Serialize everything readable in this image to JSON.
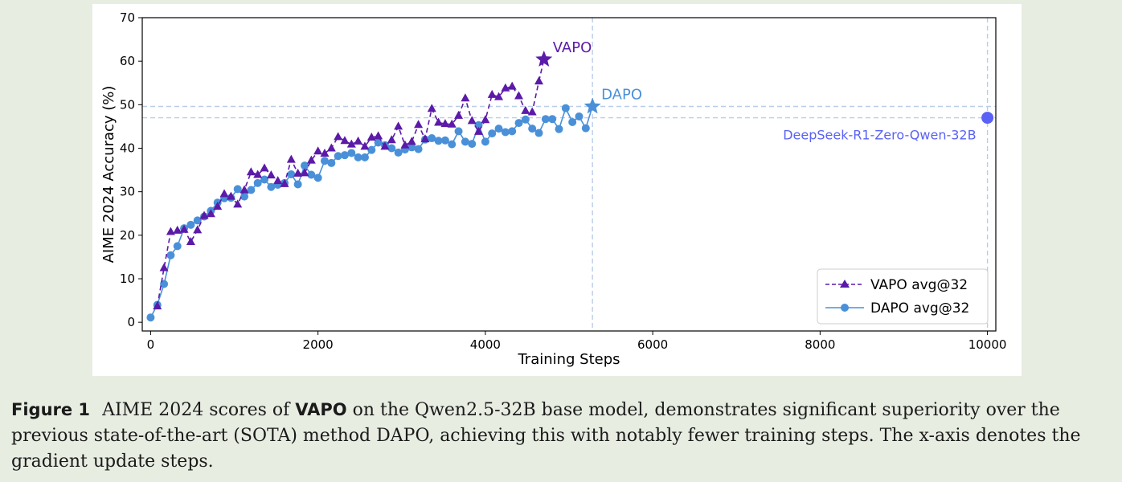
{
  "chart_data": {
    "type": "line",
    "xlabel": "Training Steps",
    "ylabel": "AIME 2024 Accuracy (%)",
    "xlim": [
      -100,
      10100
    ],
    "ylim": [
      -2,
      70
    ],
    "xticks": [
      0,
      2000,
      4000,
      6000,
      8000,
      10000
    ],
    "yticks": [
      0,
      10,
      20,
      30,
      40,
      50,
      60,
      70
    ],
    "legend_position": "lower-right",
    "series": [
      {
        "name": "VAPO avg@32",
        "color": "#5b1aa8",
        "linestyle": "dashed",
        "marker": "triangle",
        "x": [
          80,
          160,
          240,
          320,
          400,
          480,
          560,
          640,
          720,
          800,
          880,
          960,
          1040,
          1120,
          1200,
          1280,
          1360,
          1440,
          1520,
          1600,
          1680,
          1760,
          1840,
          1920,
          2000,
          2080,
          2160,
          2240,
          2320,
          2400,
          2480,
          2560,
          2640,
          2720,
          2800,
          2880,
          2960,
          3040,
          3120,
          3200,
          3280,
          3360,
          3440,
          3520,
          3600,
          3680,
          3760,
          3840,
          3920,
          4000,
          4080,
          4160,
          4240,
          4320,
          4400,
          4480,
          4560,
          4640
        ],
        "y": [
          3.7,
          12.5,
          20.8,
          21.1,
          21.3,
          18.5,
          21.2,
          24.5,
          24.9,
          26.6,
          29.5,
          28.9,
          27.1,
          30.4,
          34.5,
          33.9,
          35.4,
          33.8,
          32.5,
          31.8,
          37.4,
          34.2,
          34.3,
          37.2,
          39.3,
          38.8,
          40.0,
          42.6,
          41.7,
          40.9,
          41.6,
          40.4,
          42.5,
          42.8,
          40.4,
          41.9,
          45.0,
          40.7,
          41.5,
          45.4,
          42.1,
          49.1,
          45.9,
          45.6,
          45.5,
          47.5,
          51.5,
          46.3,
          43.8,
          46.5,
          52.3,
          51.8,
          53.8,
          54.2,
          52.0,
          48.6,
          48.3,
          55.4
        ]
      },
      {
        "name": "DAPO avg@32",
        "color": "#4a90d9",
        "linestyle": "solid",
        "marker": "circle",
        "x": [
          0,
          80,
          160,
          240,
          320,
          400,
          480,
          560,
          640,
          720,
          800,
          880,
          960,
          1040,
          1120,
          1200,
          1280,
          1360,
          1440,
          1520,
          1600,
          1680,
          1760,
          1840,
          1920,
          2000,
          2080,
          2160,
          2240,
          2320,
          2400,
          2480,
          2560,
          2640,
          2720,
          2800,
          2880,
          2960,
          3040,
          3120,
          3200,
          3280,
          3360,
          3440,
          3520,
          3600,
          3680,
          3760,
          3840,
          3920,
          4000,
          4080,
          4160,
          4240,
          4320,
          4400,
          4480,
          4560,
          4640,
          4720,
          4800,
          4880,
          4960,
          5040,
          5120,
          5200
        ],
        "y": [
          1.1,
          4.0,
          8.8,
          15.4,
          17.5,
          21.6,
          22.4,
          23.4,
          24.3,
          25.6,
          27.5,
          28.5,
          28.6,
          30.6,
          28.9,
          30.4,
          32.0,
          32.8,
          31.1,
          31.6,
          32.0,
          34.0,
          31.7,
          36.0,
          33.9,
          33.2,
          37.1,
          36.6,
          38.2,
          38.4,
          38.9,
          37.9,
          37.9,
          39.6,
          41.3,
          40.7,
          40.0,
          39.0,
          39.7,
          40.2,
          39.8,
          42.0,
          42.3,
          41.7,
          41.8,
          40.9,
          43.9,
          41.5,
          41.0,
          45.3,
          41.5,
          43.4,
          44.5,
          43.7,
          43.9,
          45.8,
          46.6,
          44.5,
          43.5,
          46.7,
          46.7,
          44.4,
          49.2,
          46.0,
          47.3,
          44.6
        ]
      }
    ],
    "highlights": [
      {
        "name": "VAPO",
        "x": 4700,
        "y": 60.4,
        "color": "#5b1aa8"
      },
      {
        "name": "DAPO",
        "x": 5280,
        "y": 49.6,
        "color": "#4a90d9"
      },
      {
        "name": "DeepSeek-R1-Zero-Qwen-32B",
        "x": 10000,
        "y": 47,
        "color": "#5a62f5"
      }
    ],
    "reference_lines": {
      "horizontal": [
        49.6,
        47
      ],
      "vertical": [
        5280,
        10000
      ]
    }
  },
  "caption": {
    "label": "Figure 1",
    "text_before_bold": "AIME 2024 scores of",
    "bold": "VAPO",
    "text_after_bold": "on the Qwen2.5-32B base model, demonstrates significant superiority over the previous state-of-the-art (SOTA) method DAPO, achieving this with notably fewer training steps. The x-axis denotes the gradient update steps."
  }
}
